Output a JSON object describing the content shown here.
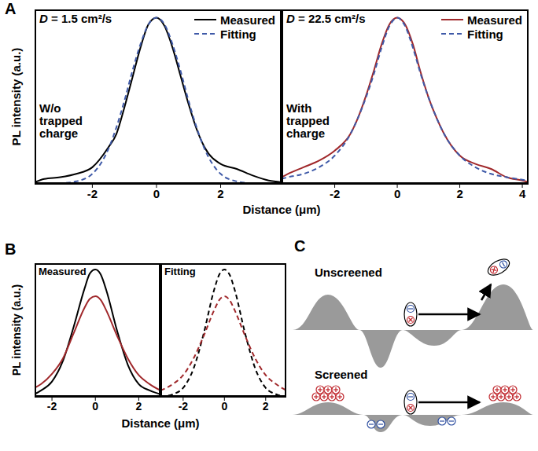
{
  "chart_data": [
    {
      "panel": "A",
      "type": "line",
      "annotations": [
        "D = 1.5 cm²/s",
        "W/o trapped charge"
      ],
      "xlabel": "Distance (μm)",
      "ylabel": "PL intensity (a.u.)",
      "x": [
        -3.8,
        -3.5,
        -3,
        -2.5,
        -2,
        -1.5,
        -1.25,
        -1,
        -0.75,
        -0.5,
        -0.25,
        0,
        0.25,
        0.5,
        0.75,
        1,
        1.25,
        1.5,
        2,
        2.5,
        3,
        3.5,
        3.9
      ],
      "series": [
        {
          "name": "Measured",
          "color": "#000000",
          "line_style": "solid",
          "values": [
            0.01,
            0.03,
            0.04,
            0.06,
            0.1,
            0.22,
            0.3,
            0.46,
            0.64,
            0.82,
            0.96,
            1,
            0.95,
            0.82,
            0.65,
            0.48,
            0.33,
            0.22,
            0.12,
            0.09,
            0.05,
            0.02,
            0.01
          ]
        },
        {
          "name": "Fitting",
          "color": "#3f5aa8",
          "line_style": "dashed",
          "values": [
            0,
            0,
            0.003,
            0.015,
            0.06,
            0.21,
            0.34,
            0.5,
            0.68,
            0.84,
            0.96,
            1,
            0.96,
            0.84,
            0.68,
            0.5,
            0.34,
            0.21,
            0.06,
            0.015,
            0.003,
            0,
            0
          ]
        }
      ],
      "xlim": [
        -3.8,
        3.9
      ],
      "xticks": [
        -2,
        0,
        2
      ],
      "ylim": [
        0,
        1.05
      ],
      "tick_labels": "x",
      "legend": "upper right"
    },
    {
      "panel": "A",
      "type": "line",
      "annotations": [
        "D = 22.5 cm²/s",
        "With trapped charge"
      ],
      "x": [
        -3.7,
        -3.5,
        -3,
        -2.5,
        -2,
        -1.5,
        -1.25,
        -1,
        -0.75,
        -0.5,
        -0.25,
        0,
        0.25,
        0.5,
        0.75,
        1,
        1.25,
        1.5,
        2,
        2.5,
        3,
        3.5,
        4,
        4.2
      ],
      "series": [
        {
          "name": "Measured",
          "color": "#a0282b",
          "line_style": "solid",
          "values": [
            0.04,
            0.06,
            0.1,
            0.14,
            0.2,
            0.3,
            0.4,
            0.53,
            0.68,
            0.84,
            0.96,
            1,
            0.96,
            0.84,
            0.67,
            0.52,
            0.4,
            0.3,
            0.17,
            0.12,
            0.09,
            0.04,
            0.02,
            0.01
          ]
        },
        {
          "name": "Fitting",
          "color": "#3f5aa8",
          "line_style": "dashed",
          "values": [
            0.03,
            0.04,
            0.06,
            0.1,
            0.17,
            0.3,
            0.4,
            0.52,
            0.66,
            0.82,
            0.95,
            1,
            0.95,
            0.82,
            0.66,
            0.52,
            0.4,
            0.3,
            0.17,
            0.1,
            0.06,
            0.04,
            0.025,
            0.02
          ]
        }
      ],
      "xlim": [
        -3.7,
        4.2
      ],
      "xticks": [
        -2,
        0,
        2,
        4
      ],
      "ylim": [
        0,
        1.05
      ],
      "tick_labels": "x",
      "legend": "upper right"
    },
    {
      "panel": "B",
      "type": "line",
      "title": "Measured",
      "xlabel": "Distance (μm)",
      "ylabel": "PL intensity (a.u.)",
      "x": [
        -2.8,
        -2.5,
        -2,
        -1.5,
        -1,
        -0.5,
        -0.25,
        0,
        0.25,
        0.5,
        1,
        1.5,
        2,
        2.5,
        3
      ],
      "series": [
        {
          "color": "#000000",
          "line_style": "solid",
          "values": [
            0.02,
            0.05,
            0.12,
            0.28,
            0.55,
            0.85,
            0.97,
            1,
            0.96,
            0.84,
            0.52,
            0.25,
            0.1,
            0.05,
            0.02
          ]
        },
        {
          "color": "#a0282b",
          "line_style": "solid",
          "values": [
            0.07,
            0.1,
            0.18,
            0.3,
            0.5,
            0.7,
            0.77,
            0.79,
            0.76,
            0.68,
            0.48,
            0.3,
            0.17,
            0.1,
            0.05
          ]
        }
      ],
      "xlim": [
        -2.8,
        3
      ],
      "xticks": [
        -2,
        0,
        2
      ],
      "ylim": [
        0,
        1.05
      ],
      "tick_labels": "x"
    },
    {
      "panel": "B",
      "type": "line",
      "title": "Fitting",
      "x": [
        -3.1,
        -2.5,
        -2,
        -1.5,
        -1,
        -0.5,
        -0.25,
        0,
        0.25,
        0.5,
        1,
        1.5,
        2,
        2.5,
        3
      ],
      "series": [
        {
          "color": "#000000",
          "line_style": "dashed",
          "values": [
            0,
            0.02,
            0.07,
            0.22,
            0.5,
            0.84,
            0.96,
            1,
            0.96,
            0.84,
            0.5,
            0.22,
            0.07,
            0.02,
            0
          ]
        },
        {
          "color": "#a0282b",
          "line_style": "dashed",
          "values": [
            0.05,
            0.1,
            0.17,
            0.3,
            0.48,
            0.68,
            0.76,
            0.79,
            0.76,
            0.68,
            0.48,
            0.3,
            0.17,
            0.1,
            0.05
          ]
        }
      ],
      "xlim": [
        -3.1,
        3
      ],
      "xticks": [
        -2,
        0,
        2
      ],
      "ylim": [
        0,
        1.05
      ],
      "tick_labels": "x"
    }
  ],
  "diagram": {
    "panel": "C",
    "labels": [
      "Unscreened",
      "Screened"
    ]
  }
}
